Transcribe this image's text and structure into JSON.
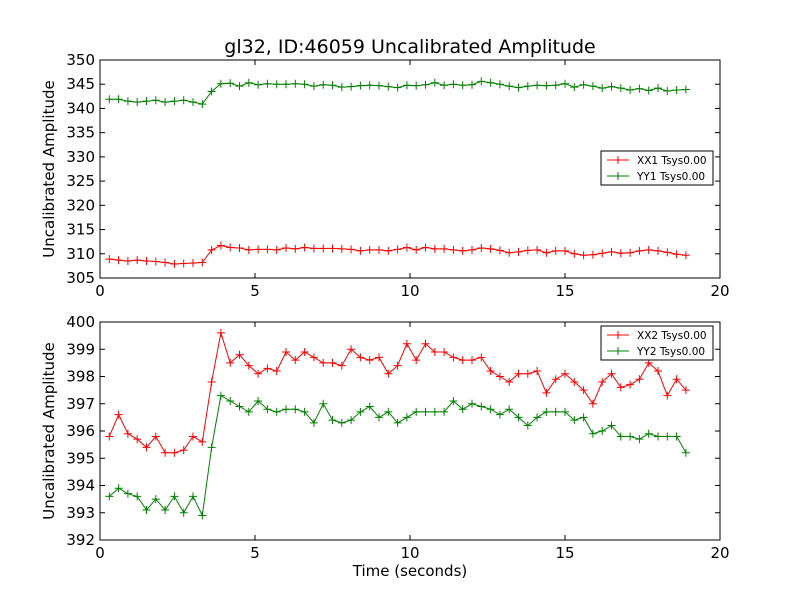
{
  "chart_data": [
    {
      "type": "line",
      "title": "gl32, ID:46059 Uncalibrated Amplitude",
      "xlabel": "",
      "ylabel": "Uncalibrated Amplitude",
      "xlim": [
        0,
        20
      ],
      "ylim": [
        305,
        350
      ],
      "xticks": [
        0,
        5,
        10,
        15,
        20
      ],
      "yticks": [
        305,
        310,
        315,
        320,
        325,
        330,
        335,
        340,
        345,
        350
      ],
      "grid": false,
      "legend_position": "center-right",
      "x": [
        0.3,
        0.6,
        0.9,
        1.2,
        1.5,
        1.8,
        2.1,
        2.4,
        2.7,
        3.0,
        3.3,
        3.6,
        3.9,
        4.2,
        4.5,
        4.8,
        5.1,
        5.4,
        5.7,
        6.0,
        6.3,
        6.6,
        6.9,
        7.2,
        7.5,
        7.8,
        8.1,
        8.4,
        8.7,
        9.0,
        9.3,
        9.6,
        9.9,
        10.2,
        10.5,
        10.8,
        11.1,
        11.4,
        11.7,
        12.0,
        12.3,
        12.6,
        12.9,
        13.2,
        13.5,
        13.8,
        14.1,
        14.4,
        14.7,
        15.0,
        15.3,
        15.6,
        15.9,
        16.2,
        16.5,
        16.8,
        17.1,
        17.4,
        17.7,
        18.0,
        18.3,
        18.6,
        18.9
      ],
      "series": [
        {
          "name": "XX1 Tsys0.00",
          "color": "#ff0000",
          "values": [
            308.9,
            308.7,
            308.5,
            308.7,
            308.5,
            308.4,
            308.2,
            307.9,
            308.0,
            308.1,
            308.2,
            310.8,
            311.7,
            311.3,
            311.2,
            310.8,
            310.9,
            310.9,
            310.8,
            311.2,
            311.0,
            311.3,
            311.1,
            311.1,
            311.1,
            311.0,
            310.9,
            310.6,
            310.8,
            310.8,
            310.6,
            310.9,
            311.3,
            310.8,
            311.3,
            311.0,
            311.0,
            310.8,
            310.6,
            310.8,
            311.2,
            311.0,
            310.7,
            310.2,
            310.4,
            310.7,
            310.8,
            310.2,
            310.6,
            310.6,
            310.0,
            309.7,
            309.8,
            310.1,
            310.4,
            310.1,
            310.2,
            310.6,
            310.8,
            310.6,
            310.3,
            309.9,
            309.7
          ]
        },
        {
          "name": "YY1 Tsys0.00",
          "color": "#008000",
          "values": [
            341.9,
            341.9,
            341.5,
            341.3,
            341.5,
            341.7,
            341.3,
            341.5,
            341.7,
            341.3,
            340.9,
            343.5,
            345.1,
            345.2,
            344.6,
            345.3,
            344.9,
            345.1,
            345.0,
            345.0,
            345.1,
            345.0,
            344.6,
            344.9,
            344.8,
            344.4,
            344.5,
            344.7,
            344.8,
            344.7,
            344.5,
            344.3,
            344.8,
            344.7,
            344.9,
            345.3,
            344.8,
            345.0,
            344.8,
            344.9,
            345.6,
            345.3,
            345.0,
            344.6,
            344.3,
            344.6,
            344.8,
            344.7,
            344.8,
            345.1,
            344.4,
            344.9,
            344.6,
            344.2,
            344.5,
            344.2,
            343.8,
            344.1,
            343.7,
            344.2,
            343.6,
            343.8,
            343.9
          ]
        }
      ]
    },
    {
      "type": "line",
      "title": "",
      "xlabel": "Time (seconds)",
      "ylabel": "Uncalibrated Amplitude",
      "xlim": [
        0,
        20
      ],
      "ylim": [
        392,
        400
      ],
      "xticks": [
        0,
        5,
        10,
        15,
        20
      ],
      "yticks": [
        392,
        393,
        394,
        395,
        396,
        397,
        398,
        399,
        400
      ],
      "grid": false,
      "legend_position": "top-right",
      "x": [
        0.3,
        0.6,
        0.9,
        1.2,
        1.5,
        1.8,
        2.1,
        2.4,
        2.7,
        3.0,
        3.3,
        3.6,
        3.9,
        4.2,
        4.5,
        4.8,
        5.1,
        5.4,
        5.7,
        6.0,
        6.3,
        6.6,
        6.9,
        7.2,
        7.5,
        7.8,
        8.1,
        8.4,
        8.7,
        9.0,
        9.3,
        9.6,
        9.9,
        10.2,
        10.5,
        10.8,
        11.1,
        11.4,
        11.7,
        12.0,
        12.3,
        12.6,
        12.9,
        13.2,
        13.5,
        13.8,
        14.1,
        14.4,
        14.7,
        15.0,
        15.3,
        15.6,
        15.9,
        16.2,
        16.5,
        16.8,
        17.1,
        17.4,
        17.7,
        18.0,
        18.3,
        18.6,
        18.9
      ],
      "series": [
        {
          "name": "XX2 Tsys0.00",
          "color": "#ff0000",
          "values": [
            395.8,
            396.6,
            395.9,
            395.7,
            395.4,
            395.8,
            395.2,
            395.2,
            395.3,
            395.8,
            395.6,
            397.8,
            399.6,
            398.5,
            398.8,
            398.4,
            398.1,
            398.3,
            398.2,
            398.9,
            398.6,
            398.9,
            398.7,
            398.5,
            398.5,
            398.4,
            399.0,
            398.7,
            398.6,
            398.7,
            398.1,
            398.4,
            399.2,
            398.6,
            399.2,
            398.9,
            398.9,
            398.7,
            398.6,
            398.6,
            398.7,
            398.2,
            398.0,
            397.8,
            398.1,
            398.1,
            398.2,
            397.4,
            397.9,
            398.1,
            397.8,
            397.5,
            397.0,
            397.8,
            398.1,
            397.6,
            397.7,
            397.9,
            398.5,
            398.2,
            397.3,
            397.9,
            397.5
          ]
        },
        {
          "name": "YY2 Tsys0.00",
          "color": "#008000",
          "values": [
            393.6,
            393.9,
            393.7,
            393.6,
            393.1,
            393.5,
            393.1,
            393.6,
            393.0,
            393.6,
            392.9,
            395.4,
            397.3,
            397.1,
            396.9,
            396.7,
            397.1,
            396.8,
            396.7,
            396.8,
            396.8,
            396.7,
            396.3,
            397.0,
            396.4,
            396.3,
            396.4,
            396.7,
            396.9,
            396.5,
            396.7,
            396.3,
            396.5,
            396.7,
            396.7,
            396.7,
            396.7,
            397.1,
            396.8,
            397.0,
            396.9,
            396.8,
            396.6,
            396.8,
            396.5,
            396.2,
            396.5,
            396.7,
            396.7,
            396.7,
            396.4,
            396.5,
            395.9,
            396.0,
            396.2,
            395.8,
            395.8,
            395.7,
            395.9,
            395.8,
            395.8,
            395.8,
            395.2
          ]
        }
      ]
    }
  ]
}
